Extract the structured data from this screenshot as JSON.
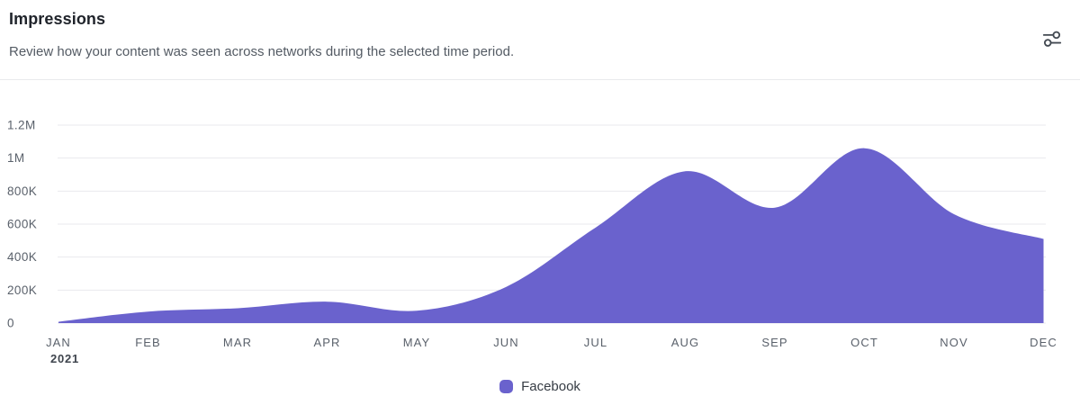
{
  "header": {
    "title": "Impressions",
    "subtitle": "Review how your content was seen across networks during the selected time period."
  },
  "toolbar": {
    "settings_icon": "sliders-adjust-icon"
  },
  "chart_data": {
    "type": "area",
    "title": "Impressions",
    "x": [
      "JAN",
      "FEB",
      "MAR",
      "APR",
      "MAY",
      "JUN",
      "JUL",
      "AUG",
      "SEP",
      "OCT",
      "NOV",
      "DEC"
    ],
    "x_sub_label": {
      "index": 0,
      "text": "2021"
    },
    "series": [
      {
        "name": "Facebook",
        "color": "#6A62CD",
        "values": [
          8000,
          70000,
          90000,
          130000,
          75000,
          220000,
          580000,
          920000,
          700000,
          1060000,
          660000,
          510000
        ]
      }
    ],
    "y_ticks": [
      {
        "value": 0,
        "label": "0"
      },
      {
        "value": 200000,
        "label": "200K"
      },
      {
        "value": 400000,
        "label": "400K"
      },
      {
        "value": 600000,
        "label": "600K"
      },
      {
        "value": 800000,
        "label": "800K"
      },
      {
        "value": 1000000,
        "label": "1M"
      },
      {
        "value": 1200000,
        "label": "1.2M"
      }
    ],
    "ylim": [
      0,
      1200000
    ],
    "xlabel": "",
    "ylabel": "",
    "grid": true,
    "legend_position": "bottom"
  }
}
